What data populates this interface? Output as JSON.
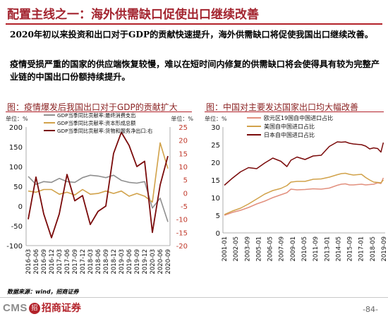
{
  "slide": {
    "title": "配置主线之一：海外供需缺口促使出口继续改善",
    "paragraph1": "2020年初以来投资和出口对于GDP的贡献快速提升，海外供需缺口将促使我国出口继续改善。",
    "paragraph2": "疫情受损严重的国家的供应端恢复较慢，难以在短时间内修复的供需缺口将会使得具有较为完整产业链的中国出口份额持续提升。",
    "source": "数据来源：wind，招商证券",
    "page": "-84-",
    "logo_text": "CMS",
    "logo_mark": "招",
    "logo_cn": "招商证券"
  },
  "colors": {
    "accent": "#b3222a",
    "series_grey": "#8f8f8f",
    "series_gold": "#d1a24a",
    "series_darkred": "#7a0a0a",
    "series_salmon": "#e2907e"
  },
  "chart_data": [
    {
      "type": "line",
      "title": "图：疫情爆发后我国出口对于GDP的贡献扩大",
      "left_unit": "单位：%",
      "right_unit": "单位：%",
      "x": [
        "2016-03",
        "2016-06",
        "2016-09",
        "2016-12",
        "2017-03",
        "2017-06",
        "2017-09",
        "2017-12",
        "2018-03",
        "2018-06",
        "2018-09",
        "2018-12",
        "2019-03",
        "2019-06",
        "2019-09",
        "2019-12",
        "2020-03",
        "2020-06",
        "2020-09"
      ],
      "left_axis": {
        "ylim": [
          -100,
          200
        ],
        "ticks": [
          -100,
          -50,
          0,
          50,
          100,
          150,
          200
        ]
      },
      "right_axis": {
        "ylim": [
          -20,
          25
        ],
        "ticks": [
          -20,
          -15,
          -10,
          -5,
          0,
          5,
          10,
          15,
          20,
          25
        ]
      },
      "series": [
        {
          "name": "GDP当季同比贡献率:最终消费支出",
          "axis": "left",
          "values": [
            75,
            55,
            62,
            60,
            70,
            62,
            60,
            72,
            78,
            76,
            72,
            78,
            65,
            60,
            58,
            62,
            -5,
            20,
            -40
          ]
        },
        {
          "name": "GDP当季同比贡献率:资本形成总额",
          "axis": "left",
          "values": [
            38,
            35,
            42,
            42,
            30,
            35,
            28,
            42,
            30,
            32,
            38,
            32,
            38,
            25,
            32,
            25,
            10,
            160,
            95
          ]
        },
        {
          "name": "GDP当季同比贡献率:货物和服务净出口:右",
          "axis": "right",
          "values": [
            -10,
            6,
            -8,
            -17,
            -8,
            7,
            -3,
            -1,
            -12,
            -7,
            -5,
            15,
            23,
            18,
            10,
            12,
            -15,
            3,
            14
          ]
        }
      ],
      "x_tick_labels": [
        "2016-03",
        "2016-06",
        "2016-09",
        "2016-12",
        "2017-03",
        "2017-06",
        "2017-09",
        "2017-12",
        "2018-03",
        "2018-06",
        "2018-09",
        "2018-12",
        "2019-03",
        "2019-06",
        "2019-09",
        "2019-12",
        "2020-03",
        "2020-06",
        "2020-09"
      ]
    },
    {
      "type": "line",
      "title": "图：中国对主要发达国家出口均大幅改善",
      "unit": "单位：%",
      "ylim": [
        0,
        30
      ],
      "y_ticks": [
        0,
        5,
        10,
        15,
        20,
        25,
        30
      ],
      "x_tick_labels": [
        "2001-01",
        "2002-05",
        "2003-09",
        "2005-01",
        "2006-05",
        "2007-09",
        "2009-01",
        "2010-05",
        "2011-09",
        "2013-01",
        "2014-05",
        "2015-09",
        "2017-01",
        "2018-05",
        "2019-09"
      ],
      "x_points": [
        2001.0,
        2002.0,
        2003.0,
        2004.0,
        2005.0,
        2006.0,
        2007.0,
        2008.0,
        2008.75,
        2009.25,
        2010.0,
        2011.0,
        2012.0,
        2013.0,
        2014.0,
        2015.0,
        2015.5,
        2016.0,
        2016.5,
        2017.0,
        2018.0,
        2018.5,
        2019.0,
        2019.5,
        2020.0,
        2020.4,
        2020.7
      ],
      "series": [
        {
          "name": "欧元区19国自中国进口占比",
          "values": [
            5.0,
            5.8,
            6.4,
            7.2,
            8.2,
            9.0,
            10.0,
            10.8,
            11.4,
            12.4,
            12.2,
            12.3,
            12.5,
            12.4,
            12.7,
            13.5,
            13.8,
            13.9,
            13.6,
            13.6,
            13.8,
            13.6,
            13.7,
            13.8,
            14.2,
            14.0,
            15.6
          ]
        },
        {
          "name": "美国自中国进口占比",
          "values": [
            5.2,
            6.2,
            7.0,
            8.2,
            9.6,
            11.0,
            12.0,
            12.6,
            13.4,
            14.4,
            14.6,
            14.6,
            15.2,
            15.3,
            15.8,
            16.5,
            16.8,
            16.9,
            16.6,
            16.4,
            16.6,
            15.7,
            15.0,
            14.4,
            14.3,
            14.2,
            15.0
          ]
        },
        {
          "name": "日本自中国进口占比",
          "values": [
            13.5,
            15.5,
            17.3,
            18.5,
            18.2,
            19.8,
            21.2,
            20.3,
            18.8,
            20.6,
            21.5,
            20.8,
            21.8,
            22.0,
            24.5,
            25.8,
            25.7,
            25.8,
            25.4,
            25.2,
            25.0,
            24.6,
            23.8,
            24.1,
            23.9,
            22.9,
            25.6
          ]
        }
      ]
    }
  ]
}
